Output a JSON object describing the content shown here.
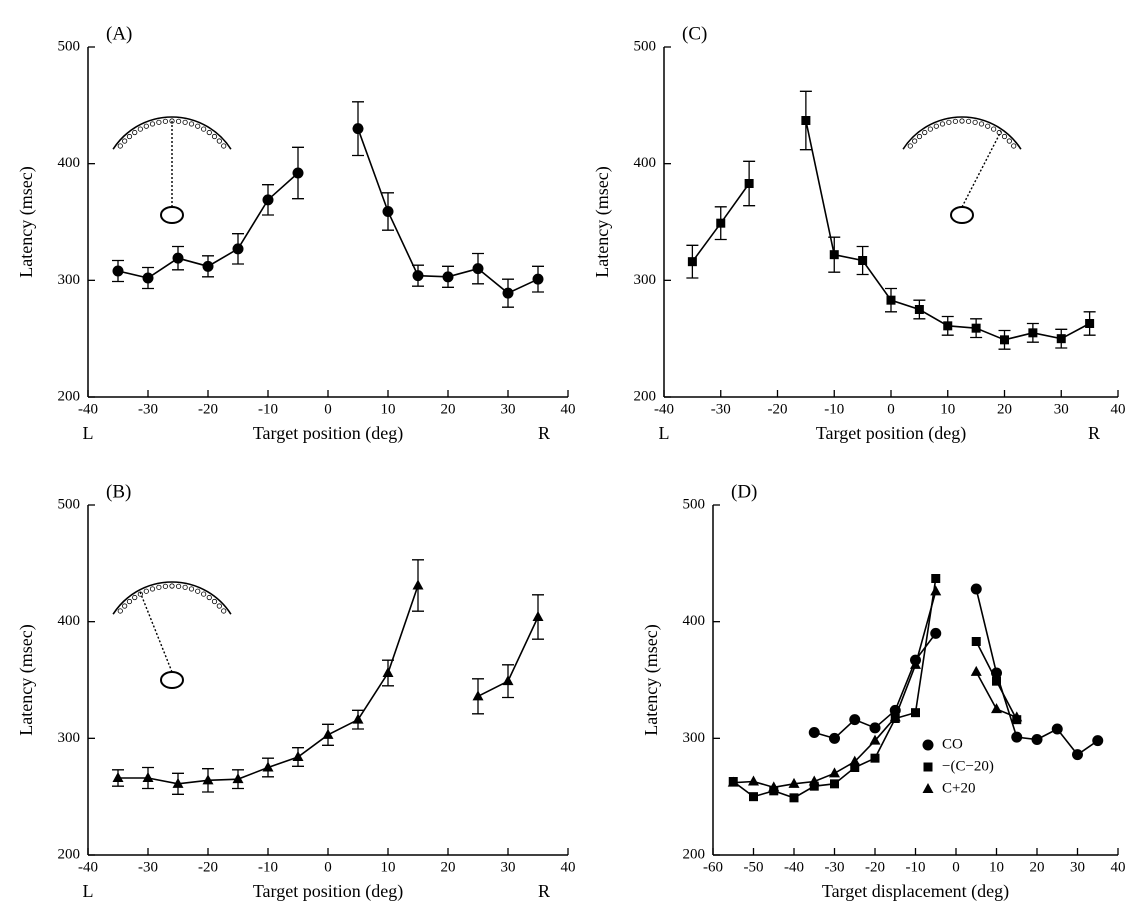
{
  "chart_data": [
    {
      "type": "line",
      "title": "(A)",
      "x_label": "Target position (deg)",
      "y_label": "Latency (msec)",
      "x_side_labels": [
        "L",
        "R"
      ],
      "x": [
        -35,
        -30,
        -25,
        -20,
        -15,
        -10,
        -5,
        0,
        5,
        10,
        15,
        20,
        25,
        30,
        35
      ],
      "series": [
        {
          "color": "#000000",
          "marker": "circle",
          "values": [
            308,
            302,
            319,
            312,
            327,
            369,
            392,
            null,
            430,
            359,
            304,
            303,
            310,
            289,
            301
          ],
          "errors": [
            9,
            9,
            10,
            9,
            13,
            13,
            22,
            null,
            23,
            16,
            9,
            9,
            13,
            12,
            11
          ]
        }
      ],
      "xlim": [
        -40,
        40
      ],
      "xticks": [
        -40,
        -30,
        -20,
        -10,
        0,
        10,
        20,
        30,
        40
      ],
      "ylim": [
        200,
        500
      ],
      "yticks": [
        200,
        300,
        400,
        500
      ]
    },
    {
      "type": "line",
      "title": "(C)",
      "x_label": "Target position (deg)",
      "y_label": "Latency (msec)",
      "x_side_labels": [
        "L",
        "R"
      ],
      "x": [
        -35,
        -30,
        -25,
        -20,
        -15,
        -10,
        -5,
        0,
        5,
        10,
        15,
        20,
        25,
        30,
        35
      ],
      "series": [
        {
          "color": "#000000",
          "marker": "square",
          "values": [
            316,
            349,
            383,
            null,
            437,
            322,
            317,
            283,
            275,
            261,
            259,
            249,
            255,
            250,
            263
          ],
          "errors": [
            14,
            14,
            19,
            null,
            25,
            15,
            12,
            10,
            8,
            8,
            8,
            8,
            8,
            8,
            10
          ]
        }
      ],
      "xlim": [
        -40,
        40
      ],
      "xticks": [
        -40,
        -30,
        -20,
        -10,
        0,
        10,
        20,
        30,
        40
      ],
      "ylim": [
        200,
        500
      ],
      "yticks": [
        200,
        300,
        400,
        500
      ]
    },
    {
      "type": "line",
      "title": "(B)",
      "x_label": "Target position (deg)",
      "y_label": "Latency (msec)",
      "x_side_labels": [
        "L",
        "R"
      ],
      "x": [
        -35,
        -30,
        -25,
        -20,
        -15,
        -10,
        -5,
        0,
        5,
        10,
        15,
        20,
        25,
        30,
        35
      ],
      "series": [
        {
          "color": "#000000",
          "marker": "triangle",
          "values": [
            266,
            266,
            261,
            264,
            265,
            275,
            284,
            303,
            316,
            356,
            431,
            null,
            336,
            349,
            404
          ],
          "errors": [
            7,
            9,
            9,
            10,
            8,
            8,
            8,
            9,
            8,
            11,
            22,
            null,
            15,
            14,
            19
          ]
        }
      ],
      "xlim": [
        -40,
        40
      ],
      "xticks": [
        -40,
        -30,
        -20,
        -10,
        0,
        10,
        20,
        30,
        40
      ],
      "ylim": [
        200,
        500
      ],
      "yticks": [
        200,
        300,
        400,
        500
      ]
    },
    {
      "type": "line",
      "title": "(D)",
      "x_label": "Target displacement (deg)",
      "y_label": "Latency (msec)",
      "x": [
        -55,
        -50,
        -45,
        -40,
        -35,
        -30,
        -25,
        -20,
        -15,
        -10,
        -5,
        0,
        5,
        10,
        15,
        20,
        25,
        30,
        35
      ],
      "series": [
        {
          "name": "CO",
          "color": "#000000",
          "marker": "circle",
          "values": [
            null,
            null,
            null,
            null,
            305,
            300,
            316,
            309,
            324,
            367,
            390,
            null,
            428,
            356,
            301,
            299,
            308,
            286,
            298
          ]
        },
        {
          "name": "−(C−20)",
          "color": "#000000",
          "marker": "square",
          "values": [
            263,
            250,
            255,
            249,
            259,
            261,
            275,
            283,
            317,
            322,
            437,
            null,
            383,
            349,
            316,
            null,
            null,
            null,
            null
          ]
        },
        {
          "name": "C+20",
          "color": "#000000",
          "marker": "triangle",
          "values": [
            262,
            263,
            258,
            261,
            263,
            270,
            280,
            298,
            318,
            363,
            426,
            null,
            357,
            325,
            318,
            null,
            null,
            null,
            null
          ]
        }
      ],
      "legend": "lower right",
      "xlim": [
        -60,
        40
      ],
      "xticks": [
        -60,
        -50,
        -40,
        -30,
        -20,
        -10,
        0,
        10,
        20,
        30,
        40
      ],
      "ylim": [
        200,
        500
      ],
      "yticks": [
        200,
        300,
        400,
        500
      ]
    }
  ]
}
